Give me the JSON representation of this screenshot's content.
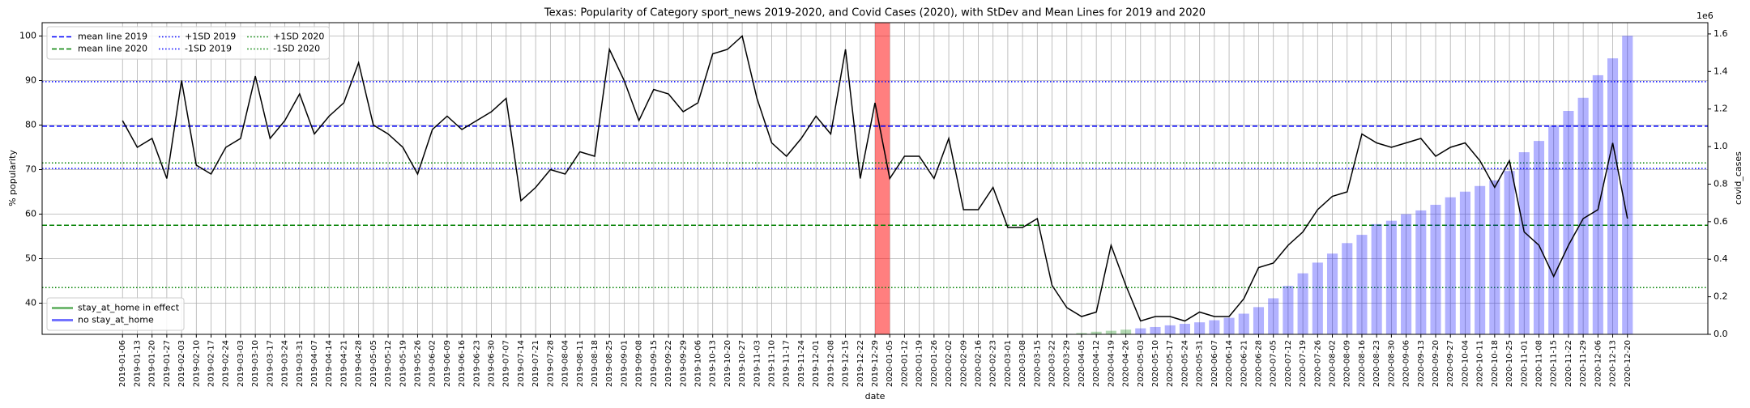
{
  "chart_data": {
    "type": "line",
    "title": "Texas: Popularity of Category sport_news 2019-2020, and Covid Cases (2020), with StDev and Mean Lines for 2019 and 2020",
    "xlabel": "date",
    "ylabel": "% popularity",
    "y2label": "covid_cases",
    "y2_offset_label": "1e6",
    "x": [
      "2019-01-06",
      "2019-01-13",
      "2019-01-20",
      "2019-01-27",
      "2019-02-03",
      "2019-02-10",
      "2019-02-17",
      "2019-02-24",
      "2019-03-03",
      "2019-03-10",
      "2019-03-17",
      "2019-03-24",
      "2019-03-31",
      "2019-04-07",
      "2019-04-14",
      "2019-04-21",
      "2019-04-28",
      "2019-05-05",
      "2019-05-12",
      "2019-05-19",
      "2019-05-26",
      "2019-06-02",
      "2019-06-09",
      "2019-06-16",
      "2019-06-23",
      "2019-06-30",
      "2019-07-07",
      "2019-07-14",
      "2019-07-21",
      "2019-07-28",
      "2019-08-04",
      "2019-08-11",
      "2019-08-18",
      "2019-08-25",
      "2019-09-01",
      "2019-09-08",
      "2019-09-15",
      "2019-09-22",
      "2019-09-29",
      "2019-10-06",
      "2019-10-13",
      "2019-10-20",
      "2019-10-27",
      "2019-11-03",
      "2019-11-10",
      "2019-11-17",
      "2019-11-24",
      "2019-12-01",
      "2019-12-08",
      "2019-12-15",
      "2019-12-22",
      "2019-12-29",
      "2020-01-05",
      "2020-01-12",
      "2020-01-19",
      "2020-01-26",
      "2020-02-02",
      "2020-02-09",
      "2020-02-16",
      "2020-02-23",
      "2020-03-01",
      "2020-03-08",
      "2020-03-15",
      "2020-03-22",
      "2020-03-29",
      "2020-04-05",
      "2020-04-12",
      "2020-04-19",
      "2020-04-26",
      "2020-05-03",
      "2020-05-10",
      "2020-05-17",
      "2020-05-24",
      "2020-05-31",
      "2020-06-07",
      "2020-06-14",
      "2020-06-21",
      "2020-06-28",
      "2020-07-05",
      "2020-07-12",
      "2020-07-19",
      "2020-07-26",
      "2020-08-02",
      "2020-08-09",
      "2020-08-16",
      "2020-08-23",
      "2020-08-30",
      "2020-09-06",
      "2020-09-13",
      "2020-09-20",
      "2020-09-27",
      "2020-10-04",
      "2020-10-11",
      "2020-10-18",
      "2020-10-25",
      "2020-11-01",
      "2020-11-08",
      "2020-11-15",
      "2020-11-22",
      "2020-11-29",
      "2020-12-06",
      "2020-12-13",
      "2020-12-20"
    ],
    "series": [
      {
        "type": "line",
        "color": "#000000",
        "values": [
          81,
          75,
          77,
          68,
          90,
          71,
          69,
          75,
          77,
          91,
          77,
          81,
          87,
          78,
          82,
          85,
          94,
          80,
          78,
          75,
          69,
          79,
          82,
          79,
          81,
          83,
          86,
          63,
          66,
          70,
          69,
          74,
          73,
          97,
          90,
          81,
          88,
          87,
          83,
          85,
          96,
          97,
          100,
          86,
          76,
          73,
          77,
          82,
          78,
          97,
          68,
          85,
          68,
          73,
          73,
          68,
          77,
          61,
          61,
          66,
          57,
          57,
          59,
          44,
          39,
          37,
          38,
          53,
          44,
          36,
          37,
          37,
          36,
          38,
          37,
          37,
          41,
          48,
          49,
          53,
          56,
          61,
          64,
          65,
          78,
          76,
          75,
          76,
          77,
          73,
          75,
          76,
          72,
          66,
          72,
          56,
          53,
          46,
          53,
          59,
          61,
          76,
          59
        ]
      },
      {
        "name": "stay_at_home in effect",
        "type": "bar",
        "axis": "y2",
        "color": "#008000",
        "alpha": 0.3,
        "values": [
          null,
          null,
          null,
          null,
          null,
          null,
          null,
          null,
          null,
          null,
          null,
          null,
          null,
          null,
          null,
          null,
          null,
          null,
          null,
          null,
          null,
          null,
          null,
          null,
          null,
          null,
          null,
          null,
          null,
          null,
          null,
          null,
          null,
          null,
          null,
          null,
          null,
          null,
          null,
          null,
          null,
          null,
          null,
          null,
          null,
          null,
          null,
          null,
          null,
          null,
          null,
          null,
          null,
          null,
          null,
          null,
          null,
          null,
          null,
          null,
          null,
          null,
          null,
          null,
          null,
          7000,
          14000,
          19000,
          25000,
          null,
          null,
          null,
          null,
          null,
          null,
          null,
          null,
          null,
          null,
          null,
          null,
          null,
          null,
          null,
          null,
          null,
          null,
          null,
          null,
          null,
          null,
          null,
          null,
          null,
          null,
          null,
          null,
          null,
          null,
          null,
          null,
          null,
          null
        ]
      },
      {
        "name": "no stay_at_home",
        "type": "bar",
        "axis": "y2",
        "color": "#0000ff",
        "alpha": 0.3,
        "values": [
          null,
          null,
          null,
          null,
          null,
          null,
          null,
          null,
          null,
          null,
          null,
          null,
          null,
          null,
          null,
          null,
          null,
          null,
          null,
          null,
          null,
          null,
          null,
          null,
          null,
          null,
          null,
          null,
          null,
          null,
          null,
          null,
          null,
          null,
          null,
          null,
          null,
          null,
          null,
          null,
          null,
          null,
          null,
          null,
          null,
          null,
          null,
          null,
          null,
          null,
          null,
          null,
          null,
          null,
          null,
          null,
          null,
          null,
          null,
          null,
          null,
          null,
          null,
          500,
          2500,
          null,
          null,
          null,
          null,
          32000,
          39000,
          48000,
          56000,
          64000,
          75000,
          88000,
          110000,
          145000,
          192000,
          258000,
          325000,
          382000,
          430000,
          486000,
          530000,
          587000,
          605000,
          640000,
          660000,
          690000,
          730000,
          760000,
          790000,
          820000,
          870000,
          970000,
          1030000,
          1110000,
          1190000,
          1260000,
          1380000,
          1470000,
          1590000
        ]
      }
    ],
    "hlines": [
      {
        "name": "mean line 2019",
        "value": 79.75,
        "color": "#0000ff",
        "style": "dashed"
      },
      {
        "name": "mean line 2020",
        "value": 57.5,
        "color": "#008000",
        "style": "dashed"
      },
      {
        "name": "+1SD 2019",
        "value": 89.75,
        "color": "#0000ff",
        "style": "dotted"
      },
      {
        "name": "-1SD 2019",
        "value": 70.25,
        "color": "#0000ff",
        "style": "dotted"
      },
      {
        "name": "+1SD 2020",
        "value": 71.5,
        "color": "#008000",
        "style": "dotted"
      },
      {
        "name": "-1SD 2020",
        "value": 43.5,
        "color": "#008000",
        "style": "dotted"
      }
    ],
    "spans": [
      {
        "from": "2019-12-29",
        "to": "2020-01-05",
        "color": "#ff0000",
        "alpha": 0.5
      }
    ],
    "ylim": [
      33,
      103
    ],
    "yticks": [
      40,
      50,
      60,
      70,
      80,
      90,
      100
    ],
    "y2lim": [
      0,
      1660000
    ],
    "y2ticks": [
      {
        "value": 0,
        "label": "0.0"
      },
      {
        "value": 200000,
        "label": "0.2"
      },
      {
        "value": 400000,
        "label": "0.4"
      },
      {
        "value": 600000,
        "label": "0.6"
      },
      {
        "value": 800000,
        "label": "0.8"
      },
      {
        "value": 1000000,
        "label": "1.0"
      },
      {
        "value": 1200000,
        "label": "1.2"
      },
      {
        "value": 1400000,
        "label": "1.4"
      },
      {
        "value": 1600000,
        "label": "1.6"
      }
    ],
    "grid": true,
    "legend": "upper left",
    "bar_legend": "lower left"
  }
}
